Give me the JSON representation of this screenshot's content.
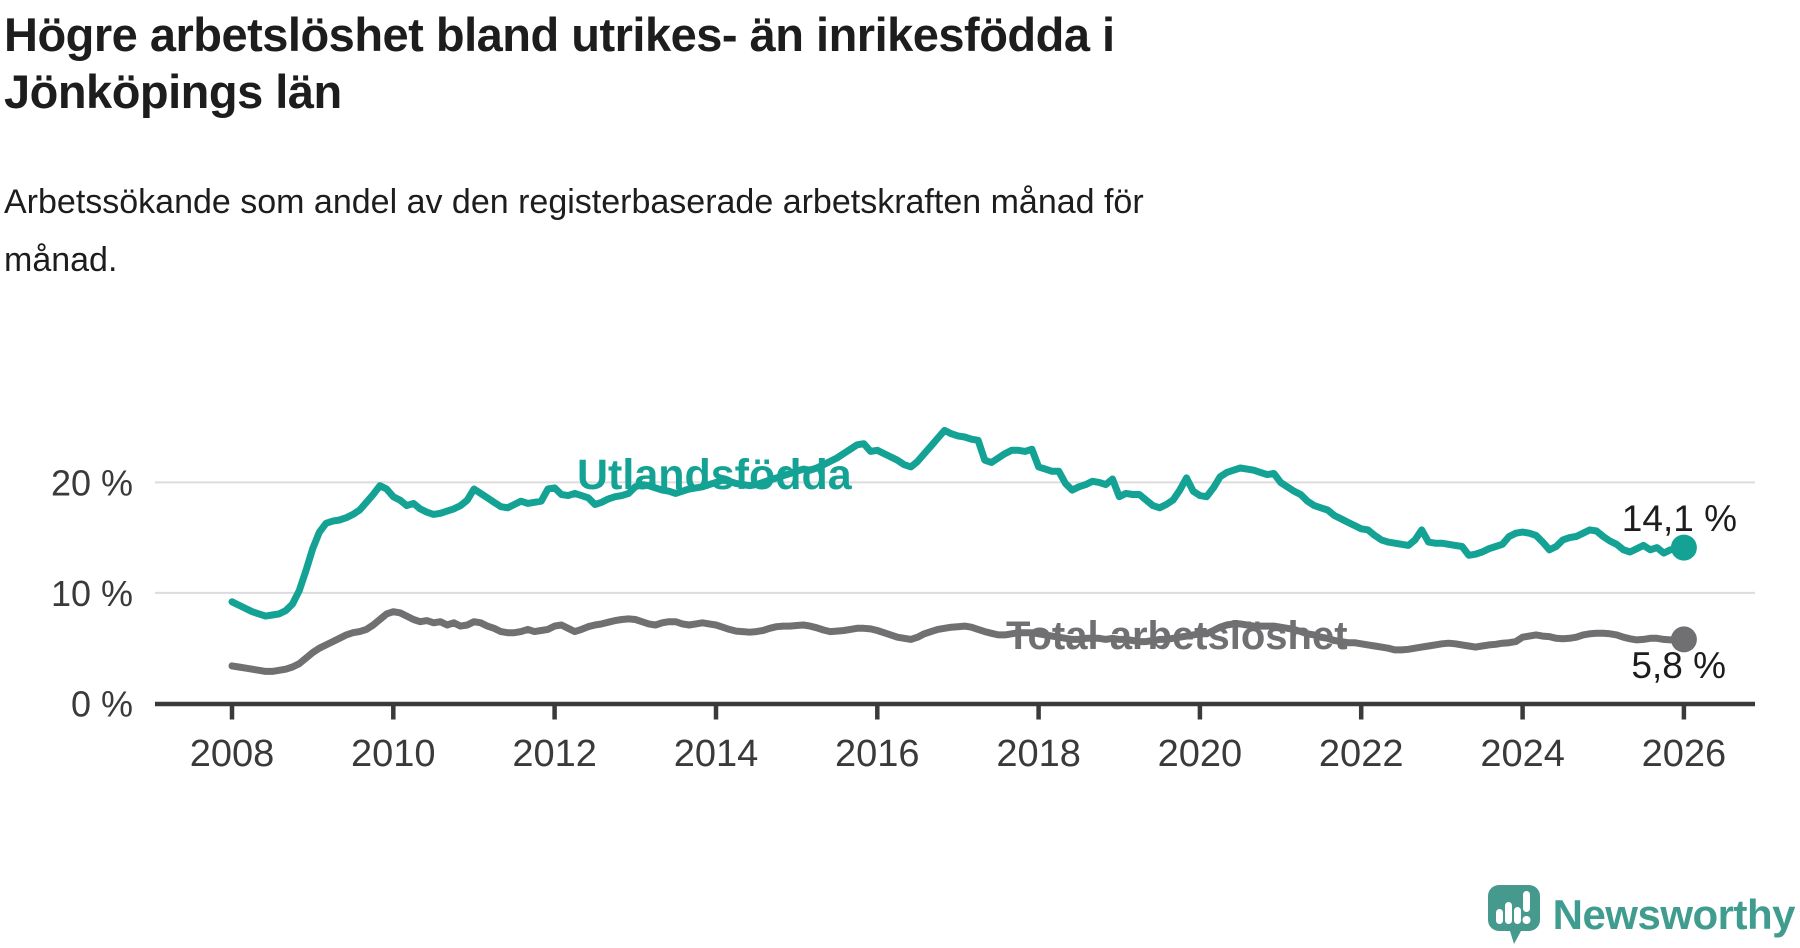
{
  "header": {
    "title_lines": [
      "Högre arbetslöshet bland utrikes- än inrikesfödda i",
      "Jönköpings län"
    ],
    "subtitle_lines": [
      "Arbetssökande som andel av den registerbaserade arbetskraften månad för",
      "månad."
    ]
  },
  "colors": {
    "foreign_born": "#14a294",
    "total": "#707072",
    "axis": "#3a3a3a",
    "gridline": "#dcdcdc",
    "text": "#1d1d1d",
    "logo": "#3f9c8e"
  },
  "logo": {
    "text": "Newsworthy"
  },
  "chart_data": {
    "type": "line",
    "title": "Högre arbetslöshet bland utrikes- än inrikesfödda i Jönköpings län",
    "subtitle": "Arbetssökande som andel av den registerbaserade arbetskraften månad för månad.",
    "x_unit": "monthly",
    "x_start_year": 2008,
    "x_end_year": 2026,
    "xlim": [
      2007.05,
      2026.87
    ],
    "ylim": [
      0,
      26.6
    ],
    "grid": "horizontal",
    "gridline_values": [
      10,
      20
    ],
    "x_ticks": [
      "2008",
      "2010",
      "2012",
      "2014",
      "2016",
      "2018",
      "2020",
      "2022",
      "2024",
      "2026"
    ],
    "y_ticks": [
      {
        "value": 20,
        "label": "20 %"
      },
      {
        "value": 10,
        "label": "10 %"
      },
      {
        "value": 0,
        "label": "0 %"
      }
    ],
    "legend_position": "inline-labels",
    "series": [
      {
        "name": "Utlandsfödda",
        "color_key": "foreign_born",
        "end_value": 14.1,
        "end_label": "14,1 %",
        "values": [
          9.2,
          8.9,
          8.6,
          8.3,
          8.1,
          7.9,
          8.0,
          8.1,
          8.4,
          9.0,
          10.2,
          12.0,
          14.0,
          15.5,
          16.3,
          16.5,
          16.6,
          16.8,
          17.1,
          17.5,
          18.2,
          18.9,
          19.7,
          19.4,
          18.7,
          18.4,
          17.9,
          18.1,
          17.6,
          17.3,
          17.1,
          17.2,
          17.4,
          17.6,
          17.9,
          18.4,
          19.4,
          19.0,
          18.6,
          18.2,
          17.8,
          17.7,
          18.0,
          18.3,
          18.1,
          18.2,
          18.3,
          19.4,
          19.5,
          18.9,
          18.8,
          19.0,
          18.8,
          18.6,
          18.0,
          18.2,
          18.5,
          18.7,
          18.8,
          19.0,
          19.6,
          19.8,
          19.7,
          19.5,
          19.3,
          19.2,
          19.0,
          19.2,
          19.4,
          19.5,
          19.6,
          19.8,
          20.0,
          20.2,
          20.1,
          19.9,
          19.8,
          19.7,
          19.8,
          20.0,
          20.2,
          20.4,
          20.6,
          20.8,
          21.0,
          21.2,
          21.1,
          21.3,
          21.6,
          21.9,
          22.2,
          22.6,
          23.0,
          23.4,
          23.5,
          22.8,
          22.9,
          22.6,
          22.3,
          22.0,
          21.6,
          21.4,
          21.9,
          22.6,
          23.3,
          24.0,
          24.7,
          24.4,
          24.2,
          24.1,
          23.9,
          23.8,
          22.0,
          21.8,
          22.2,
          22.6,
          22.9,
          22.9,
          22.8,
          23.0,
          21.4,
          21.2,
          21.0,
          21.0,
          19.9,
          19.3,
          19.6,
          19.8,
          20.1,
          20.0,
          19.8,
          20.3,
          18.7,
          19.0,
          18.9,
          18.9,
          18.4,
          17.9,
          17.7,
          18.0,
          18.4,
          19.3,
          20.4,
          19.2,
          18.8,
          18.7,
          19.5,
          20.5,
          20.9,
          21.1,
          21.3,
          21.2,
          21.1,
          20.9,
          20.7,
          20.8,
          20.0,
          19.6,
          19.2,
          18.9,
          18.3,
          17.9,
          17.7,
          17.5,
          17.0,
          16.7,
          16.4,
          16.1,
          15.8,
          15.7,
          15.2,
          14.8,
          14.6,
          14.5,
          14.4,
          14.3,
          14.8,
          15.7,
          14.6,
          14.5,
          14.5,
          14.4,
          14.3,
          14.2,
          13.4,
          13.5,
          13.7,
          14.0,
          14.2,
          14.4,
          15.1,
          15.4,
          15.5,
          15.4,
          15.2,
          14.6,
          13.9,
          14.2,
          14.8,
          15.0,
          15.1,
          15.4,
          15.7,
          15.6,
          15.1,
          14.7,
          14.4,
          13.9,
          13.7,
          14.0,
          14.3,
          13.9,
          14.1,
          13.6,
          13.9,
          14.0,
          14.1
        ]
      },
      {
        "name": "Total arbetslöshet",
        "color_key": "total",
        "end_value": 5.8,
        "end_label": "5,8 %",
        "values": [
          3.4,
          3.3,
          3.2,
          3.1,
          3.0,
          2.9,
          2.9,
          3.0,
          3.1,
          3.3,
          3.6,
          4.1,
          4.6,
          5.0,
          5.3,
          5.6,
          5.9,
          6.2,
          6.4,
          6.5,
          6.7,
          7.1,
          7.6,
          8.1,
          8.3,
          8.2,
          7.9,
          7.6,
          7.4,
          7.5,
          7.3,
          7.4,
          7.1,
          7.3,
          7.0,
          7.1,
          7.4,
          7.3,
          7.0,
          6.8,
          6.5,
          6.4,
          6.4,
          6.5,
          6.7,
          6.5,
          6.6,
          6.7,
          7.0,
          7.1,
          6.8,
          6.5,
          6.7,
          6.95,
          7.1,
          7.2,
          7.35,
          7.5,
          7.6,
          7.65,
          7.6,
          7.4,
          7.2,
          7.1,
          7.3,
          7.4,
          7.4,
          7.2,
          7.1,
          7.2,
          7.3,
          7.2,
          7.1,
          6.9,
          6.7,
          6.55,
          6.5,
          6.45,
          6.5,
          6.6,
          6.8,
          6.95,
          7.0,
          7.0,
          7.05,
          7.1,
          7.0,
          6.85,
          6.65,
          6.5,
          6.55,
          6.6,
          6.7,
          6.8,
          6.8,
          6.75,
          6.6,
          6.4,
          6.2,
          6.0,
          5.9,
          5.8,
          6.0,
          6.3,
          6.5,
          6.7,
          6.8,
          6.9,
          6.95,
          7.0,
          6.9,
          6.7,
          6.5,
          6.35,
          6.2,
          6.2,
          6.3,
          6.4,
          6.4,
          6.4,
          6.3,
          6.2,
          6.1,
          6.0,
          5.9,
          5.8,
          5.8,
          5.9,
          5.9,
          5.9,
          5.8,
          5.9,
          5.8,
          5.8,
          5.7,
          5.6,
          5.6,
          5.7,
          5.8,
          5.8,
          5.9,
          6.0,
          6.1,
          6.2,
          6.3,
          6.3,
          6.6,
          6.9,
          7.1,
          7.2,
          7.2,
          7.1,
          7.0,
          7.0,
          7.0,
          7.0,
          6.9,
          6.8,
          6.7,
          6.5,
          6.3,
          6.2,
          6.0,
          5.9,
          5.7,
          5.6,
          5.5,
          5.5,
          5.4,
          5.3,
          5.2,
          5.1,
          5.0,
          4.85,
          4.85,
          4.9,
          5.0,
          5.1,
          5.2,
          5.3,
          5.4,
          5.45,
          5.4,
          5.3,
          5.2,
          5.1,
          5.2,
          5.3,
          5.35,
          5.45,
          5.5,
          5.6,
          6.0,
          6.1,
          6.2,
          6.1,
          6.05,
          5.9,
          5.85,
          5.9,
          6.0,
          6.2,
          6.3,
          6.35,
          6.35,
          6.3,
          6.2,
          6.0,
          5.85,
          5.75,
          5.8,
          5.9,
          5.9,
          5.8,
          5.75,
          5.8,
          5.8
        ]
      }
    ]
  }
}
